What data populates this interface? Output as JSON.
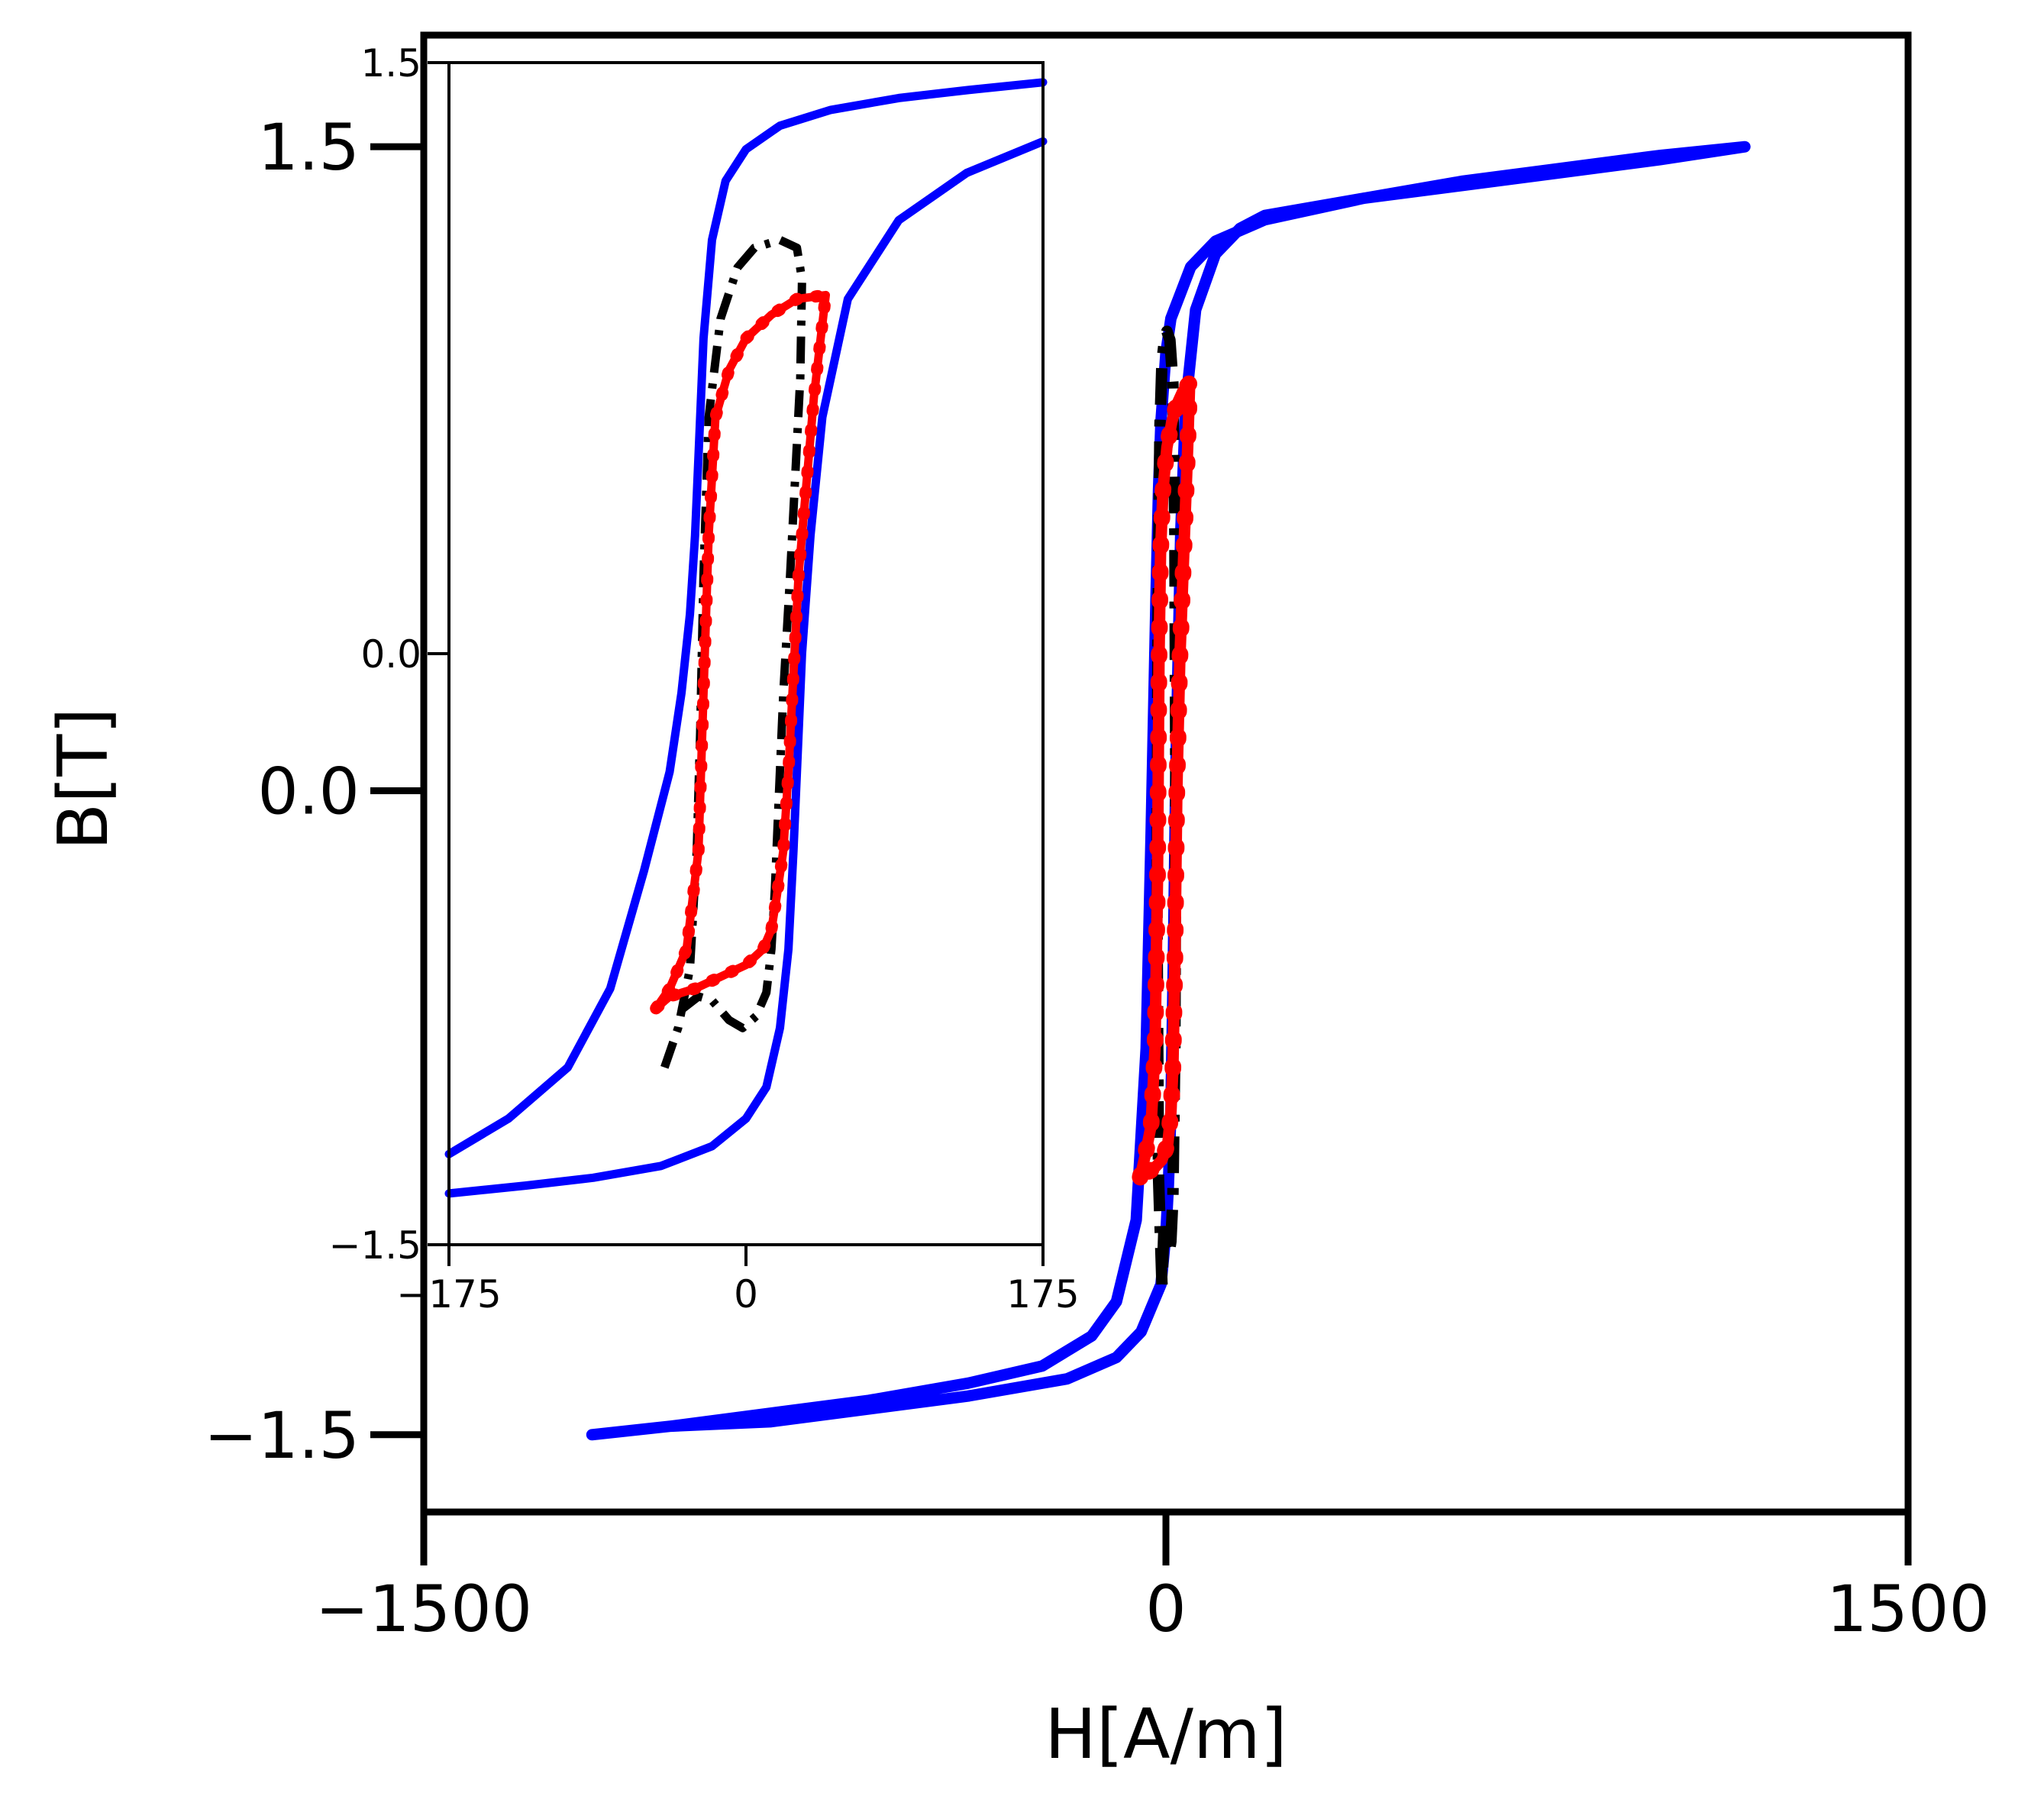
{
  "chart_data": {
    "type": "line",
    "xlabel": "H[A/m]",
    "ylabel": "B[T]",
    "xlim": [
      -1500,
      1500
    ],
    "ylim": [
      -1.68,
      1.76
    ],
    "xticks": [
      -1500,
      0,
      1500
    ],
    "xtick_labels": [
      "−1500",
      "0",
      "1500"
    ],
    "yticks": [
      -1.5,
      0.0,
      1.5
    ],
    "ytick_labels": [
      "−1.5",
      "0.0",
      "1.5"
    ],
    "grid": false,
    "legend": "none",
    "colors": {
      "major_loop": "#0000ff",
      "minor_loop_dashdot": "#000000",
      "minor_loop_red": "#ff0000"
    },
    "series": [
      {
        "style": "solid",
        "color": "#0000ff",
        "x": [
          -1160,
          -1000,
          -800,
          -600,
          -400,
          -250,
          -150,
          -100,
          -60,
          -40,
          -30,
          -20,
          -15,
          -10,
          0,
          10,
          50,
          100,
          200,
          400,
          600,
          800,
          1000,
          1170,
          1000,
          800,
          600,
          400,
          200,
          150,
          100,
          60,
          40,
          30,
          20,
          15,
          10,
          5,
          0,
          -10,
          -50,
          -100,
          -200,
          -400,
          -600,
          -800,
          -1000,
          -1160
        ],
        "y": [
          -1.5,
          -1.48,
          -1.45,
          -1.42,
          -1.38,
          -1.34,
          -1.27,
          -1.19,
          -1.0,
          -0.6,
          -0.1,
          0.45,
          0.7,
          0.86,
          1.02,
          1.1,
          1.22,
          1.28,
          1.33,
          1.38,
          1.41,
          1.44,
          1.47,
          1.5,
          1.48,
          1.45,
          1.42,
          1.38,
          1.34,
          1.31,
          1.25,
          1.12,
          0.9,
          0.6,
          0.05,
          -0.4,
          -0.75,
          -0.92,
          -1.03,
          -1.15,
          -1.26,
          -1.32,
          -1.37,
          -1.41,
          -1.44,
          -1.47,
          -1.48,
          -1.5
        ]
      },
      {
        "style": "dashdot",
        "color": "#000000",
        "x": [
          -8,
          -15,
          -18,
          -16,
          -12,
          -8,
          -3,
          2,
          8,
          14,
          18,
          20,
          18,
          14,
          10,
          6,
          1,
          -4,
          -8
        ],
        "y": [
          -1.15,
          -0.9,
          -0.3,
          0.4,
          0.85,
          1.0,
          1.05,
          1.07,
          1.05,
          0.95,
          0.6,
          0.0,
          -0.6,
          -0.95,
          -1.05,
          -1.08,
          -1.06,
          -1.02,
          -1.15
        ]
      },
      {
        "style": "solid-dotted",
        "color": "#ff0000",
        "x": [
          -52,
          -42,
          -30,
          -22,
          -17,
          -14,
          -11,
          -6,
          2,
          12,
          22,
          34,
          48,
          44,
          36,
          28,
          22,
          18,
          14,
          10,
          4,
          -8,
          -24,
          -40,
          -52
        ],
        "y": [
          -0.9,
          -0.85,
          -0.78,
          -0.6,
          -0.2,
          0.3,
          0.55,
          0.7,
          0.8,
          0.86,
          0.9,
          0.93,
          0.95,
          0.8,
          0.55,
          0.3,
          0.0,
          -0.4,
          -0.65,
          -0.75,
          -0.82,
          -0.86,
          -0.88,
          -0.89,
          -0.9
        ]
      }
    ],
    "inset": {
      "xlim": [
        -175,
        175
      ],
      "ylim": [
        -1.5,
        1.5
      ],
      "xticks": [
        -175,
        0,
        175
      ],
      "xtick_labels": [
        "−175",
        "0",
        "175"
      ],
      "yticks": [
        -1.5,
        0.0,
        1.5
      ],
      "ytick_labels": [
        "−1.5",
        "0.0",
        "1.5"
      ],
      "series": [
        {
          "style": "solid",
          "color": "#0000ff",
          "x": [
            -175,
            -140,
            -105,
            -80,
            -60,
            -45,
            -38,
            -33,
            -30,
            -28,
            -25,
            -20,
            -12,
            0,
            20,
            50,
            90,
            130,
            175
          ],
          "y": [
            -1.27,
            -1.18,
            -1.05,
            -0.85,
            -0.55,
            -0.3,
            -0.1,
            0.1,
            0.3,
            0.5,
            0.8,
            1.05,
            1.2,
            1.28,
            1.34,
            1.38,
            1.41,
            1.43,
            1.45
          ]
        },
        {
          "style": "solid",
          "color": "#0000ff",
          "x": [
            175,
            130,
            90,
            60,
            45,
            38,
            33,
            30,
            28,
            25,
            20,
            12,
            0,
            -20,
            -50,
            -90,
            -130,
            -175
          ],
          "y": [
            1.3,
            1.22,
            1.1,
            0.9,
            0.6,
            0.3,
            0.0,
            -0.3,
            -0.5,
            -0.75,
            -0.95,
            -1.1,
            -1.18,
            -1.25,
            -1.3,
            -1.33,
            -1.35,
            -1.37
          ]
        },
        {
          "style": "dashdot",
          "color": "#000000",
          "x": [
            -48,
            -40,
            -33,
            -29,
            -27,
            -25,
            -22,
            -15,
            -5,
            5,
            20,
            30,
            33,
            32,
            29,
            26,
            22,
            19,
            17,
            15,
            12,
            6,
            -2,
            -10,
            -20,
            -28,
            -37,
            -42
          ],
          "y": [
            -1.05,
            -0.95,
            -0.8,
            -0.5,
            -0.2,
            0.2,
            0.6,
            0.85,
            0.98,
            1.03,
            1.05,
            1.03,
            0.95,
            0.7,
            0.45,
            0.2,
            -0.1,
            -0.4,
            -0.6,
            -0.75,
            -0.86,
            -0.92,
            -0.95,
            -0.93,
            -0.88,
            -0.87,
            -0.9,
            -0.92
          ]
        },
        {
          "style": "solid-dotted",
          "color": "#ff0000",
          "x": [
            -53,
            -45,
            -35,
            -28,
            -25,
            -22,
            -18,
            -10,
            0,
            15,
            30,
            47,
            44,
            40,
            35,
            31,
            28,
            25,
            22,
            18,
            15,
            10,
            0,
            -15,
            -30,
            -45,
            -53
          ],
          "y": [
            -0.9,
            -0.85,
            -0.75,
            -0.5,
            -0.1,
            0.3,
            0.6,
            0.72,
            0.8,
            0.86,
            0.9,
            0.91,
            0.8,
            0.65,
            0.4,
            0.2,
            -0.05,
            -0.3,
            -0.5,
            -0.62,
            -0.7,
            -0.75,
            -0.79,
            -0.82,
            -0.85,
            -0.87,
            -0.9
          ]
        }
      ]
    }
  }
}
